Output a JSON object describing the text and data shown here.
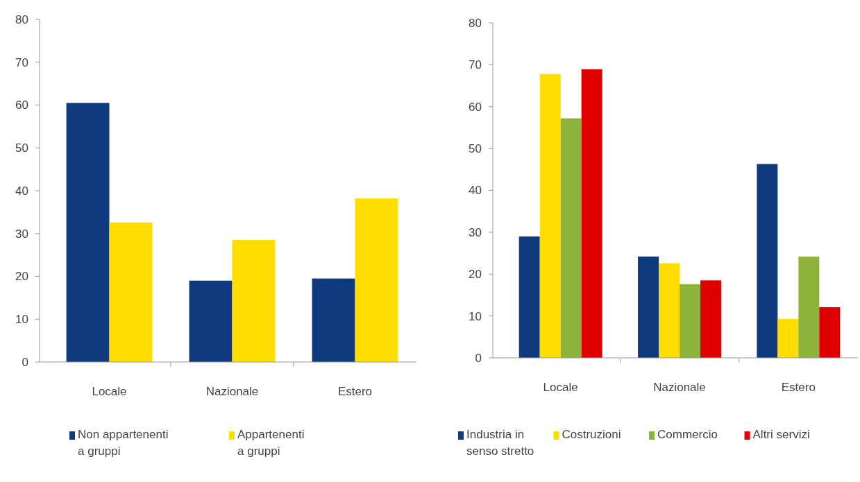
{
  "chart_data": [
    {
      "type": "bar",
      "categories": [
        "Locale",
        "Nazionale",
        "Estero"
      ],
      "series": [
        {
          "name": "Non appartenenti a gruppi",
          "color": "#0f3a7d",
          "values": [
            60.5,
            19.0,
            19.5
          ]
        },
        {
          "name": "Appartenenti a gruppi",
          "color": "#ffdd00",
          "values": [
            32.6,
            28.5,
            38.2
          ]
        }
      ],
      "ylim": [
        0,
        80
      ],
      "yticks": [
        0,
        10,
        20,
        30,
        40,
        50,
        60,
        70,
        80
      ],
      "legend": "bottom"
    },
    {
      "type": "bar",
      "categories": [
        "Locale",
        "Nazionale",
        "Estero"
      ],
      "series": [
        {
          "name": "Industria in senso stretto",
          "color": "#0f3a7d",
          "values": [
            29.0,
            24.2,
            46.3
          ]
        },
        {
          "name": "Costruzioni",
          "color": "#ffdd00",
          "values": [
            67.8,
            22.6,
            9.3
          ]
        },
        {
          "name": "Commercio",
          "color": "#8db33a",
          "values": [
            57.2,
            17.6,
            24.2
          ]
        },
        {
          "name": "Altri servizi",
          "color": "#e00000",
          "values": [
            68.9,
            18.5,
            12.1
          ]
        }
      ],
      "ylim": [
        0,
        80
      ],
      "yticks": [
        0,
        10,
        20,
        30,
        40,
        50,
        60,
        70,
        80
      ],
      "legend": "bottom"
    }
  ]
}
